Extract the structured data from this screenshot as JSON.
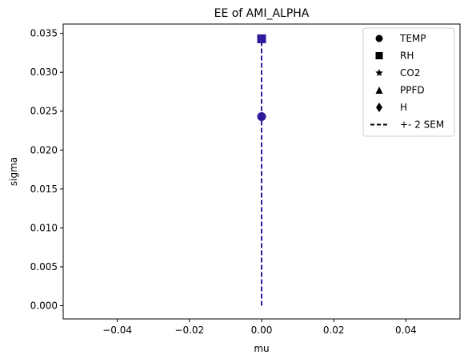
{
  "chart_data": {
    "type": "scatter",
    "title": "EE of AMI_ALPHA",
    "xlabel": "mu",
    "ylabel": "sigma",
    "xlim": [
      -0.055,
      0.055
    ],
    "ylim": [
      -0.0017,
      0.0362
    ],
    "xticks": [
      -0.04,
      -0.02,
      0.0,
      0.02,
      0.04
    ],
    "xtick_labels": [
      "−0.04",
      "−0.02",
      "0.00",
      "0.02",
      "0.04"
    ],
    "yticks": [
      0.0,
      0.005,
      0.01,
      0.015,
      0.02,
      0.025,
      0.03,
      0.035
    ],
    "ytick_labels": [
      "0.000",
      "0.005",
      "0.010",
      "0.015",
      "0.020",
      "0.025",
      "0.030",
      "0.035"
    ],
    "grid": false,
    "legend_position": "top-right",
    "legend": [
      {
        "marker": "circle",
        "label": "TEMP"
      },
      {
        "marker": "square",
        "label": "RH"
      },
      {
        "marker": "star",
        "label": "CO2"
      },
      {
        "marker": "triangle",
        "label": "PPFD"
      },
      {
        "marker": "diamond",
        "label": "H"
      },
      {
        "marker": "dashed-line",
        "label": "+- 2 SEM"
      }
    ],
    "points": [
      {
        "name": "TEMP",
        "marker": "circle",
        "x": 0.0,
        "y": 0.0243,
        "color": "#2e1a9a"
      },
      {
        "name": "RH",
        "marker": "square",
        "x": 0.0,
        "y": 0.0343,
        "color": "#2e1a9a"
      }
    ],
    "sem_lines": [
      {
        "x": 0.0,
        "y0": 0.0,
        "y1": 0.0343,
        "color": "#2e1a9a",
        "style": "dashed"
      }
    ]
  }
}
